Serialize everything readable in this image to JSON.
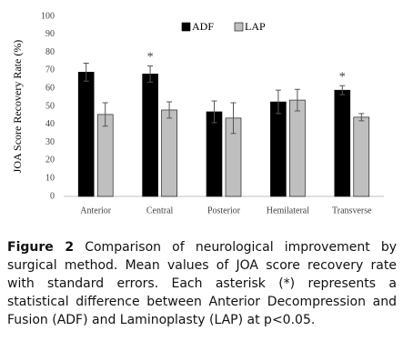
{
  "chart_data": {
    "type": "bar",
    "y_label": "JOA Score Recovery Rate (%)",
    "categories": [
      "Anterior",
      "Central",
      "Posterior",
      "Hemilateral",
      "Transverse"
    ],
    "series": [
      {
        "name": "ADF",
        "color": "#000000",
        "values": [
          69,
          68,
          47,
          52.5,
          59
        ],
        "errors": [
          5,
          4.5,
          6,
          6.5,
          2.5
        ]
      },
      {
        "name": "LAP",
        "color": "#bfbfbf",
        "values": [
          45.5,
          48,
          43.5,
          53.5,
          44
        ],
        "errors": [
          6.5,
          4.5,
          8.5,
          6,
          2
        ]
      }
    ],
    "significance": [
      null,
      "*",
      null,
      null,
      "*"
    ],
    "ylim": [
      0,
      100
    ],
    "yticks": [
      0,
      10,
      20,
      30,
      40,
      50,
      60,
      70,
      80,
      90,
      100
    ],
    "grid": false,
    "legend": "top"
  },
  "caption": {
    "label": "Figure 2",
    "text": "Comparison of neurological improvement by surgical method. Mean values of JOA score recovery rate with standard errors. Each asterisk (*) represents a statistical difference between Anterior Decompression and Fusion (ADF) and Laminoplasty (LAP) at p<0.05."
  }
}
